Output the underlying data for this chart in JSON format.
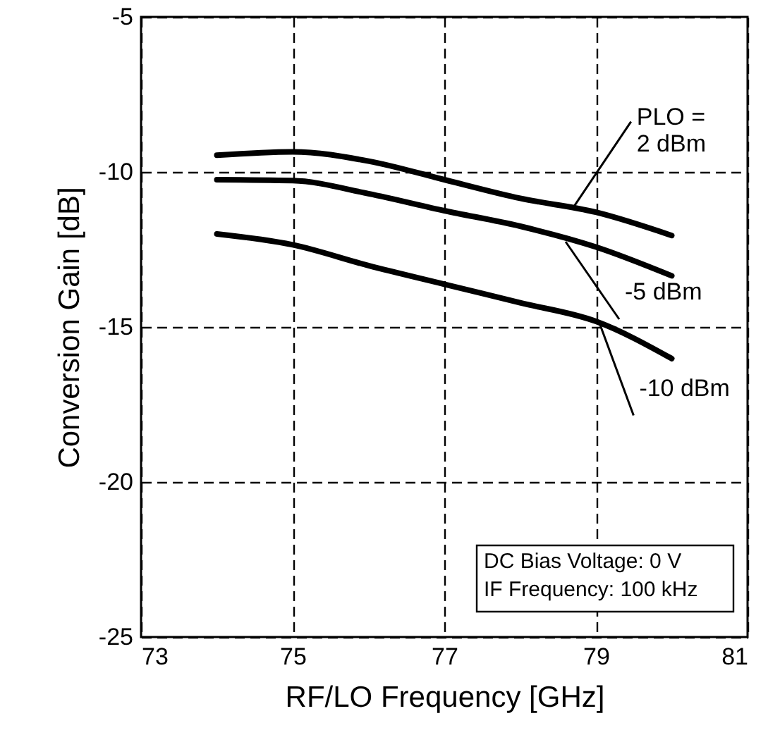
{
  "chart_data": {
    "type": "line",
    "xlabel": "RF/LO Frequency [GHz]",
    "ylabel": "Conversion Gain [dB]",
    "x": [
      74,
      75,
      76,
      77,
      78,
      79,
      80
    ],
    "series": [
      {
        "color": "#000000",
        "values": [
          -9.46,
          -9.35,
          -9.65,
          -10.25,
          -10.85,
          -11.3,
          -12.05
        ]
      },
      {
        "color": "#000000",
        "values": [
          -10.25,
          -10.28,
          -10.7,
          -11.25,
          -11.75,
          -12.42,
          -13.35
        ]
      },
      {
        "color": "#000000",
        "values": [
          -12.0,
          -12.35,
          -13.02,
          -13.62,
          -14.22,
          -14.82,
          -16.02
        ]
      }
    ],
    "xlim": [
      73,
      81
    ],
    "xticks": [
      73,
      75,
      77,
      79,
      81
    ],
    "ylim": [
      -25,
      -5
    ],
    "yticks": [
      -25,
      -20,
      -15,
      -10,
      -5
    ],
    "grid": true,
    "line_style": "solid",
    "marker": "none",
    "annotations": [
      {
        "text": "PLO =\n2 dBm",
        "x": 78.7,
        "y": -11.15
      },
      {
        "text": "-5 dBm",
        "x": 78.6,
        "y": -12.25
      },
      {
        "text": "-10 dBm",
        "x": 79.05,
        "y": -14.9
      },
      "DC Bias Voltage: 0 V",
      "IF Frequency: 100 kHz"
    ]
  }
}
